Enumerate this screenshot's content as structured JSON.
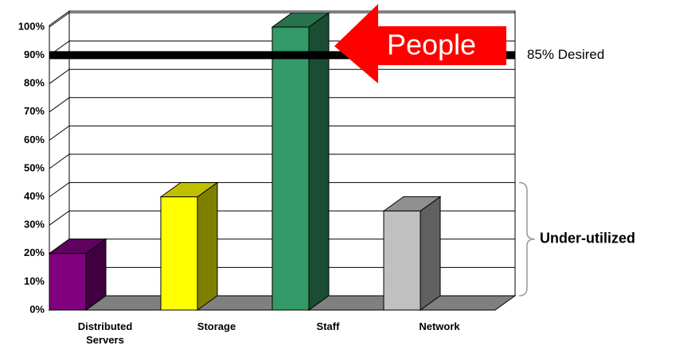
{
  "chart_data": {
    "type": "bar3d",
    "categories": [
      "Distributed Servers",
      "Storage",
      "Staff",
      "Network"
    ],
    "series": [
      {
        "colors": [
          "#800080",
          "#ffff00",
          "#339966",
          "#c0c0c0"
        ],
        "values": [
          20,
          40,
          100,
          35
        ]
      }
    ],
    "ylim": [
      0,
      100
    ],
    "yticks": [
      {
        "value": 0,
        "label": "0%"
      },
      {
        "value": 10,
        "label": "10%"
      },
      {
        "value": 20,
        "label": "20%"
      },
      {
        "value": 30,
        "label": "30%"
      },
      {
        "value": 40,
        "label": "40%"
      },
      {
        "value": 50,
        "label": "50%"
      },
      {
        "value": 60,
        "label": "60%"
      },
      {
        "value": 70,
        "label": "70%"
      },
      {
        "value": 80,
        "label": "80%"
      },
      {
        "value": 90,
        "label": "90%"
      },
      {
        "value": 100,
        "label": "100%"
      }
    ],
    "grid": true,
    "reference_line": {
      "value": 85,
      "label": "85% Desired"
    },
    "annotations": {
      "arrow": "People",
      "brace": "Under-utilized"
    }
  }
}
